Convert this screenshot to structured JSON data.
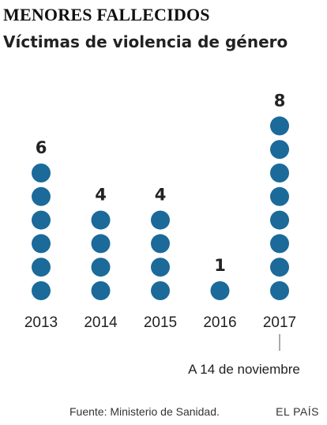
{
  "title": "MENORES FALLECIDOS",
  "subtitle": "Víctimas de violencia de género",
  "chart_data": {
    "type": "bar",
    "title": "MENORES FALLECIDOS",
    "subtitle": "Víctimas de violencia de género",
    "categories": [
      "2013",
      "2014",
      "2015",
      "2016",
      "2017"
    ],
    "values": [
      6,
      4,
      4,
      1,
      8
    ],
    "value_labels": [
      "6",
      "4",
      "4",
      "1",
      "8"
    ],
    "annotation": {
      "category": "2017",
      "text": "A 14 de noviembre"
    },
    "xlabel": "",
    "ylabel": "",
    "grid": false,
    "legend": "none"
  },
  "colors": {
    "dot": "#1b6a9a",
    "text": "#222222"
  },
  "footer": {
    "source": "Fuente: Ministerio de Sanidad.",
    "brand": "EL PAÍS"
  }
}
